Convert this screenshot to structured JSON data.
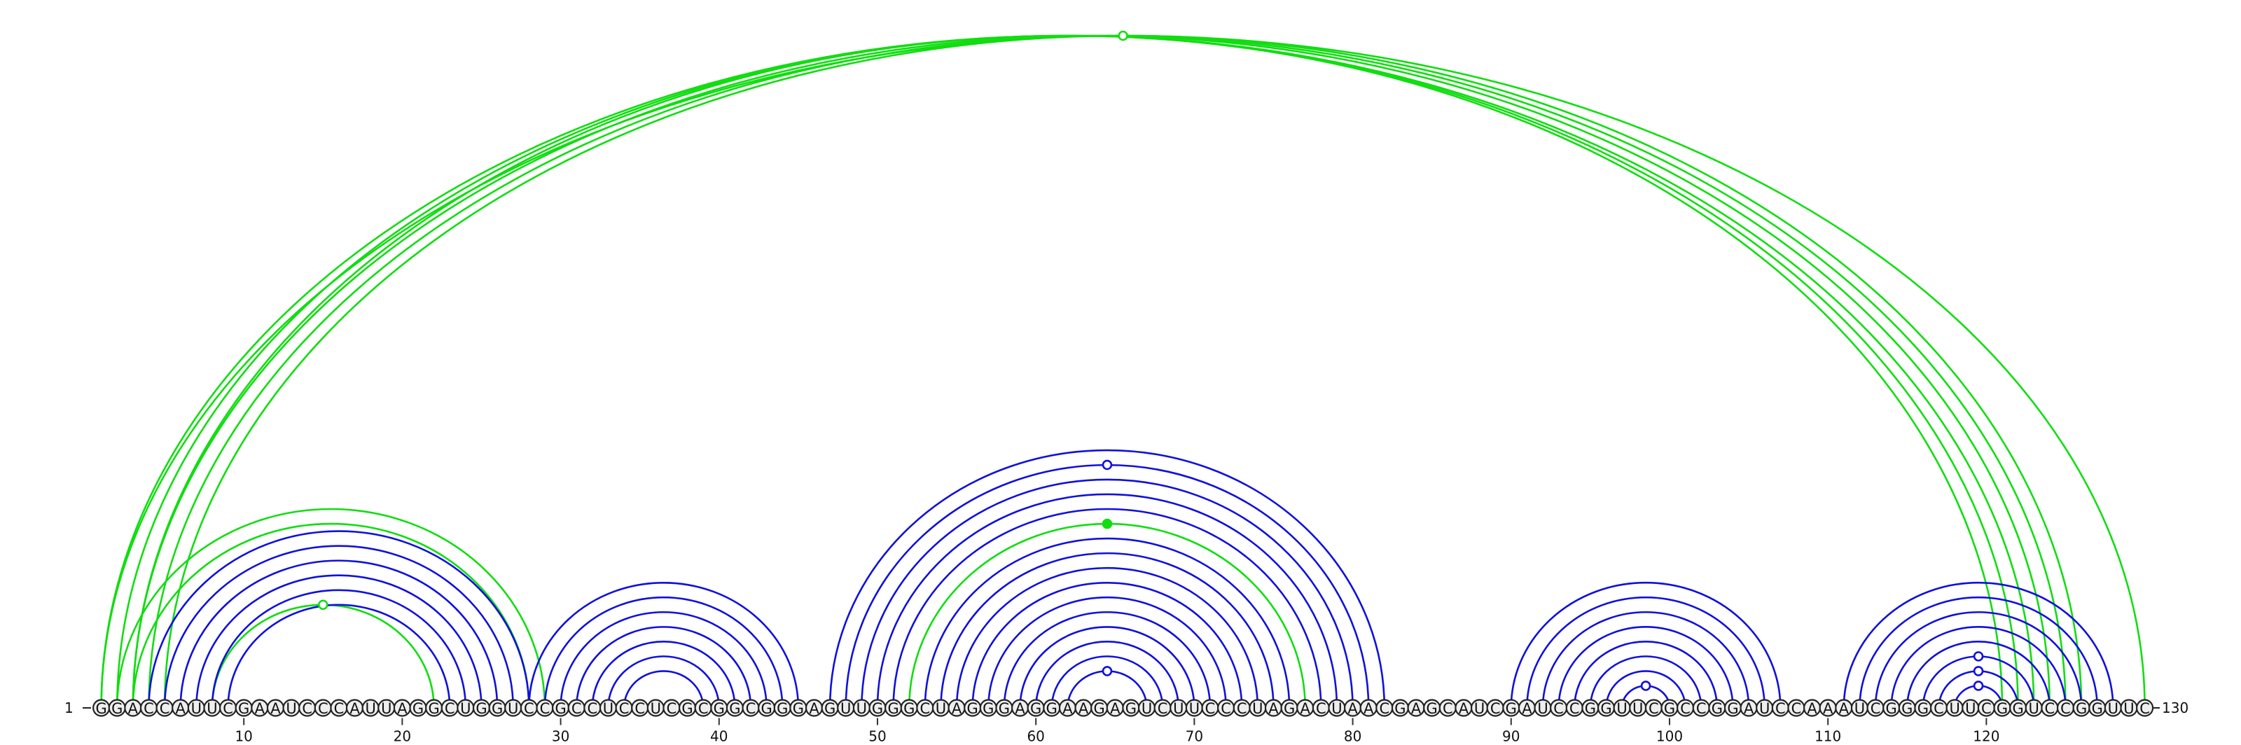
{
  "sequence": "GGACCAUUCGAAUCCCAUUAGGCUGGUCCGCCUCCUCGCGGCGGGAGUUGGGCUAGGGAGGAAGAGUCUUCCCUAGACUAACGAGCAUCGAUCCGGUUCGCCGGAUCCAAAUCGGGCUUCGGUCCGGUUC",
  "labels": {
    "start": "1",
    "end": "130"
  },
  "tick_positions": [
    10,
    20,
    30,
    40,
    50,
    60,
    70,
    80,
    90,
    100,
    110,
    120
  ],
  "tick_labels": [
    "10",
    "20",
    "30",
    "40",
    "50",
    "60",
    "70",
    "80",
    "90",
    "100",
    "110",
    "120"
  ],
  "colors": {
    "blue": "#1010dd",
    "green": "#11dd11"
  },
  "arcs": [
    {
      "color": "green",
      "pairs": [
        [
          1,
          123
        ],
        [
          2,
          122
        ],
        [
          3,
          121
        ],
        [
          5,
          126
        ],
        [
          1,
          130
        ],
        [
          4,
          125
        ],
        [
          3,
          124
        ]
      ]
    },
    {
      "color": "green",
      "pairs": [
        [
          2,
          29
        ],
        [
          3,
          28
        ]
      ]
    },
    {
      "color": "green",
      "pairs": [
        [
          8,
          22
        ]
      ]
    },
    {
      "color": "blue",
      "pairs": [
        [
          4,
          28
        ],
        [
          5,
          27
        ],
        [
          6,
          26
        ],
        [
          7,
          25
        ],
        [
          8,
          24
        ],
        [
          9,
          23
        ]
      ]
    },
    {
      "color": "blue",
      "pairs": [
        [
          28,
          45
        ],
        [
          29,
          44
        ],
        [
          30,
          43
        ],
        [
          31,
          42
        ],
        [
          32,
          41
        ],
        [
          33,
          40
        ],
        [
          34,
          39
        ]
      ]
    },
    {
      "color": "blue",
      "pairs": [
        [
          47,
          82
        ],
        [
          48,
          81
        ],
        [
          49,
          80
        ],
        [
          50,
          79
        ],
        [
          51,
          78
        ],
        [
          53,
          76
        ],
        [
          54,
          75
        ],
        [
          55,
          74
        ],
        [
          56,
          73
        ],
        [
          57,
          72
        ],
        [
          58,
          71
        ],
        [
          59,
          70
        ],
        [
          60,
          69
        ],
        [
          61,
          68
        ],
        [
          62,
          67
        ]
      ]
    },
    {
      "color": "green",
      "pairs": [
        [
          52,
          77
        ]
      ]
    },
    {
      "color": "blue",
      "pairs": [
        [
          90,
          107
        ],
        [
          91,
          106
        ],
        [
          92,
          105
        ],
        [
          93,
          104
        ],
        [
          94,
          103
        ],
        [
          95,
          102
        ],
        [
          96,
          101
        ],
        [
          97,
          100
        ]
      ]
    },
    {
      "color": "blue",
      "pairs": [
        [
          111,
          128
        ],
        [
          112,
          127
        ],
        [
          113,
          126
        ],
        [
          114,
          125
        ],
        [
          115,
          124
        ],
        [
          116,
          123
        ],
        [
          117,
          122
        ],
        [
          118,
          121
        ]
      ]
    }
  ],
  "markers": [
    {
      "pos": 65,
      "level": "outer",
      "color": "green",
      "filled": false
    },
    {
      "pos": 15,
      "level": "green-loop",
      "color": "green",
      "filled": false
    },
    {
      "pos": 65,
      "level": "blue-2",
      "color": "blue",
      "filled": false
    },
    {
      "pos": 65,
      "level": "green-loop2",
      "color": "green",
      "filled": true
    },
    {
      "pos": 65,
      "level": "inner",
      "color": "blue",
      "filled": false
    },
    {
      "pos": 99,
      "level": "inner",
      "color": "blue",
      "filled": false
    },
    {
      "pos": 120,
      "level": "a",
      "color": "blue",
      "filled": false
    },
    {
      "pos": 120,
      "level": "b",
      "color": "blue",
      "filled": false
    },
    {
      "pos": 120,
      "level": "c",
      "color": "blue",
      "filled": false
    }
  ]
}
